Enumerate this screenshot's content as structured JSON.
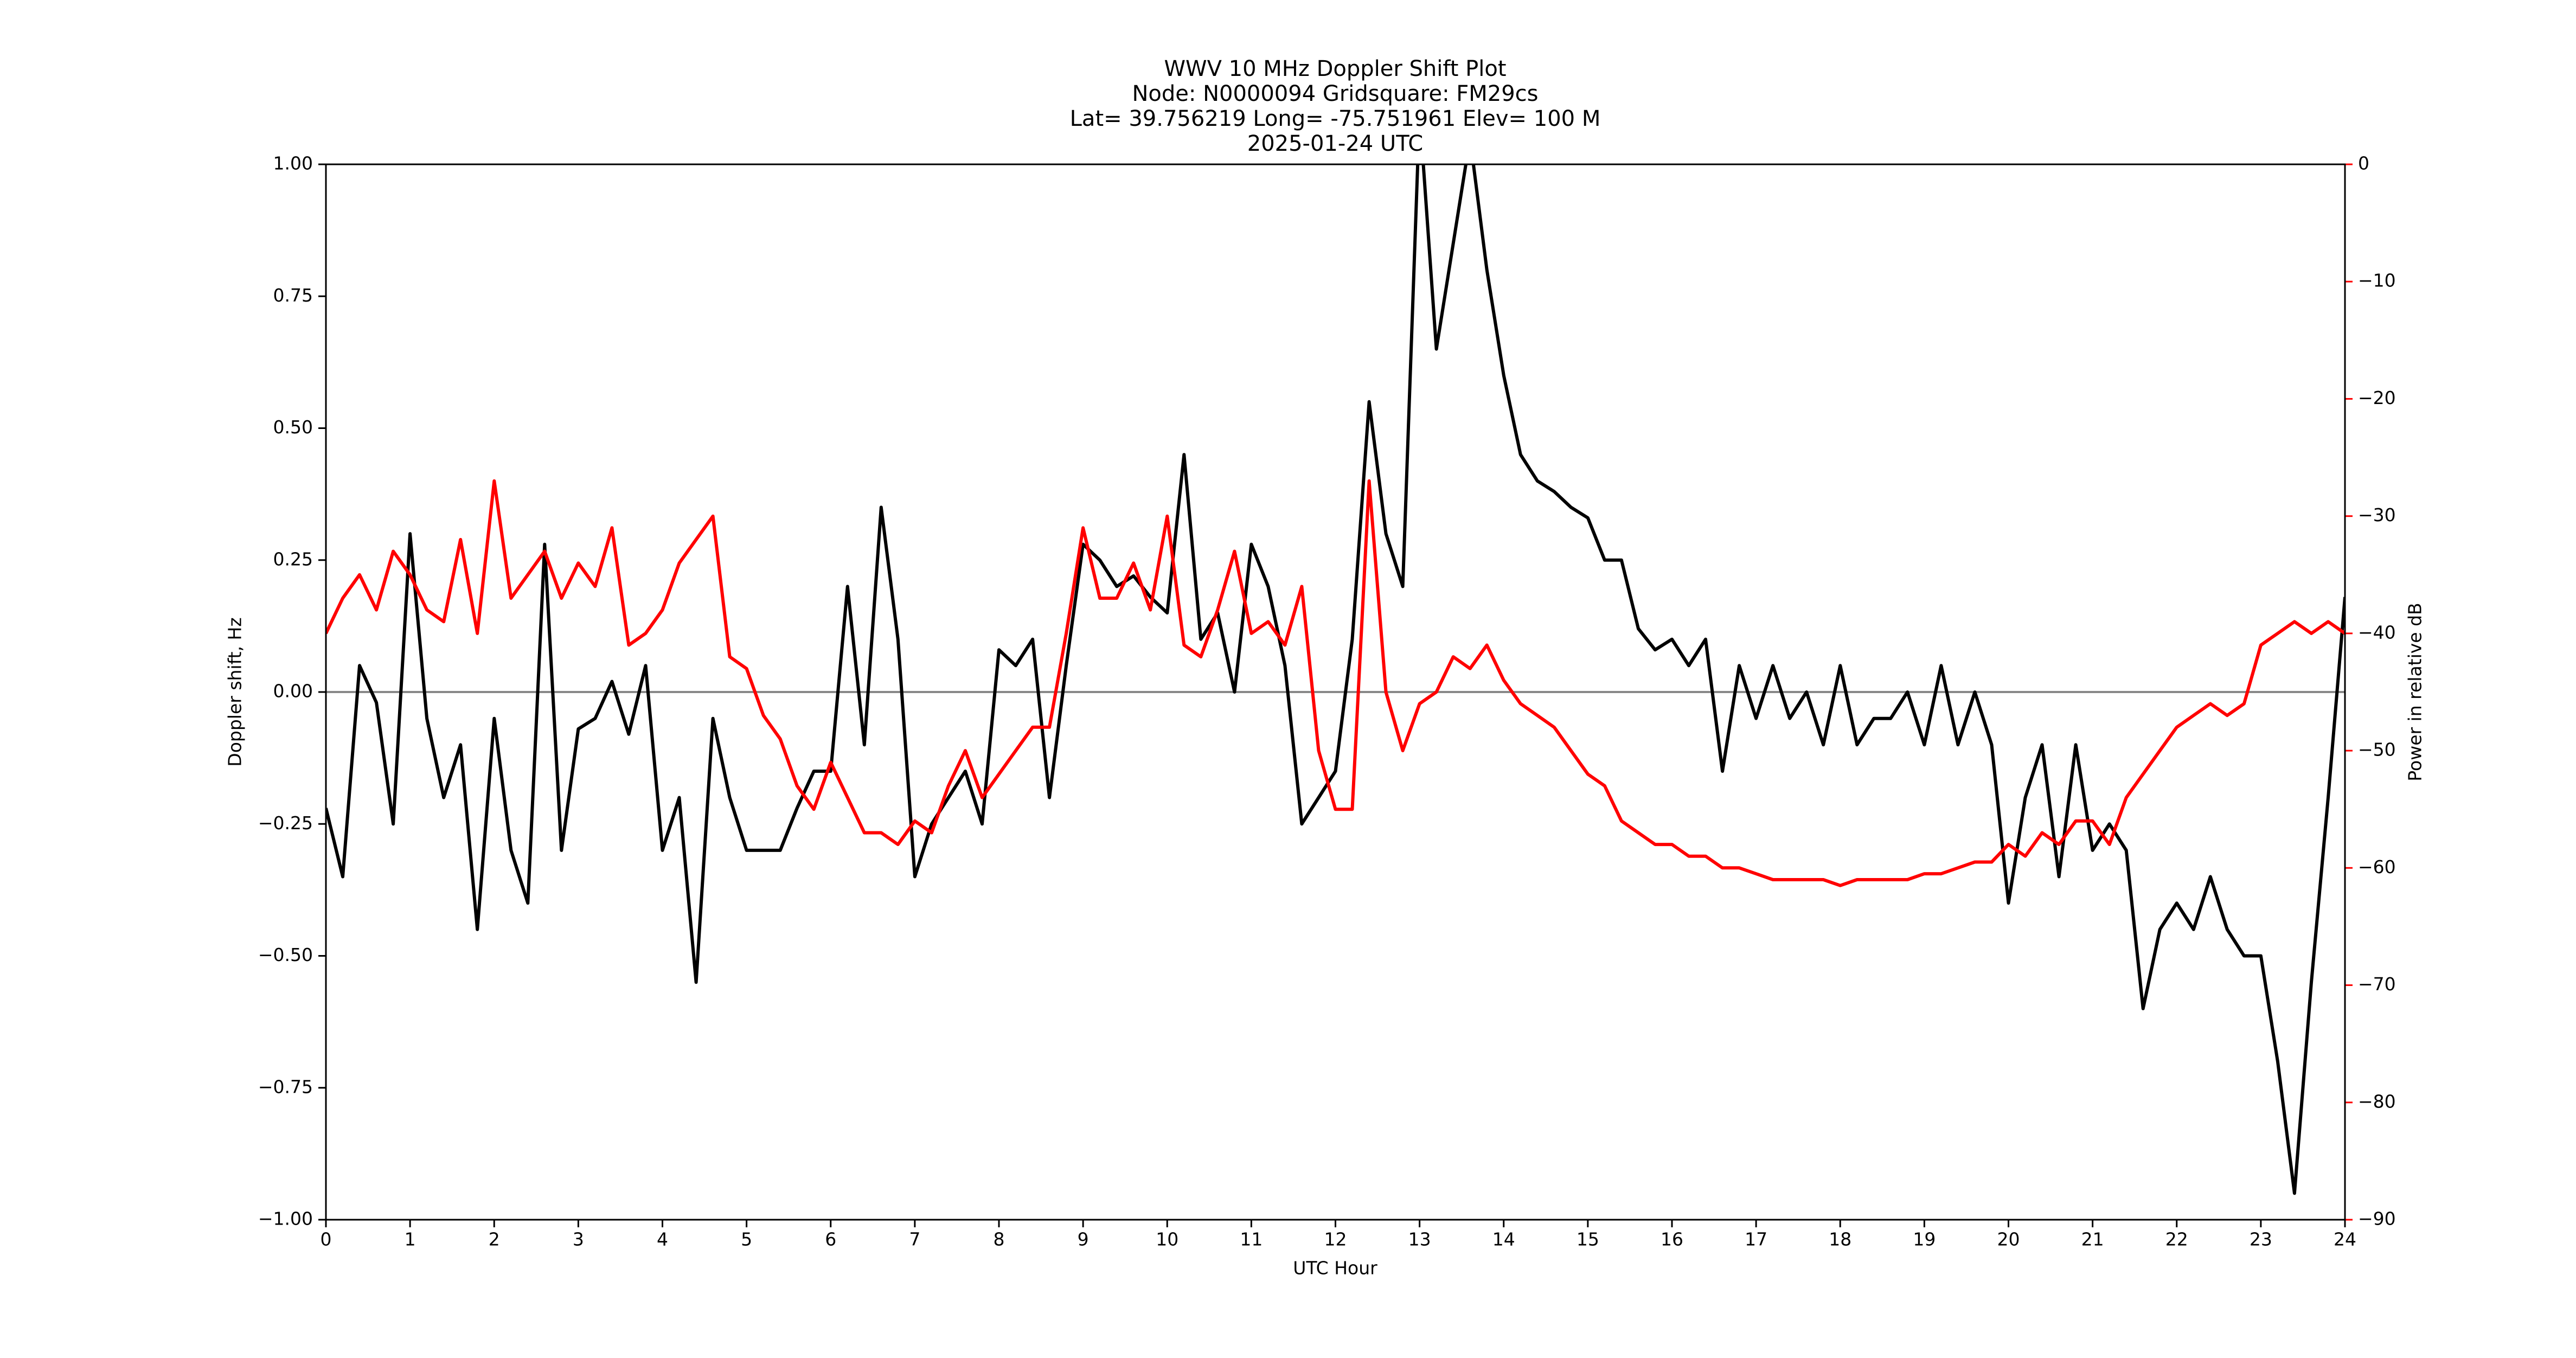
{
  "chart_data": {
    "type": "line",
    "title_lines": [
      "WWV 10 MHz Doppler Shift Plot",
      "Node:  N0000094     Gridsquare:  FM29cs",
      "Lat= 39.756219    Long= -75.751961    Elev= 100 M",
      "2025-01-24  UTC"
    ],
    "x_label": "UTC Hour",
    "y_label": "Doppler shift, Hz",
    "y2_label": "Power in relative dB",
    "xlim": [
      0,
      24
    ],
    "xticks": [
      0,
      1,
      2,
      3,
      4,
      5,
      6,
      7,
      8,
      9,
      10,
      11,
      12,
      13,
      14,
      15,
      16,
      17,
      18,
      19,
      20,
      21,
      22,
      23,
      24
    ],
    "ylim": [
      -1,
      1
    ],
    "yticks": [
      {
        "value": -1,
        "label": "−1.00"
      },
      {
        "value": -0.75,
        "label": "−0.75"
      },
      {
        "value": -0.5,
        "label": "−0.50"
      },
      {
        "value": -0.25,
        "label": "−0.25"
      },
      {
        "value": 0,
        "label": "0.00"
      },
      {
        "value": 0.25,
        "label": "0.25"
      },
      {
        "value": 0.5,
        "label": "0.50"
      },
      {
        "value": 0.75,
        "label": "0.75"
      },
      {
        "value": 1,
        "label": "1.00"
      }
    ],
    "y2lim": [
      -90,
      0
    ],
    "y2ticks": [
      {
        "value": -90,
        "label": "−90"
      },
      {
        "value": -80,
        "label": "−80"
      },
      {
        "value": -70,
        "label": "−70"
      },
      {
        "value": -60,
        "label": "−60"
      },
      {
        "value": -50,
        "label": "−50"
      },
      {
        "value": -40,
        "label": "−40"
      },
      {
        "value": -30,
        "label": "−30"
      },
      {
        "value": -20,
        "label": "−20"
      },
      {
        "value": -10,
        "label": "−10"
      },
      0
    ],
    "y2_color": "#ff0000",
    "hline": 0,
    "hline_color": "#888888",
    "x": [
      0,
      0.2,
      0.4,
      0.6,
      0.8,
      1,
      1.2,
      1.4,
      1.6,
      1.8,
      2,
      2.2,
      2.4,
      2.6,
      2.8,
      3,
      3.2,
      3.4,
      3.6,
      3.8,
      4,
      4.2,
      4.4,
      4.6,
      4.8,
      5,
      5.2,
      5.4,
      5.6,
      5.8,
      6,
      6.2,
      6.4,
      6.6,
      6.8,
      7,
      7.2,
      7.4,
      7.6,
      7.8,
      8,
      8.2,
      8.4,
      8.6,
      8.8,
      9,
      9.2,
      9.4,
      9.6,
      9.8,
      10,
      10.2,
      10.4,
      10.6,
      10.8,
      11,
      11.2,
      11.4,
      11.6,
      11.8,
      12,
      12.2,
      12.4,
      12.6,
      12.8,
      13,
      13.2,
      13.4,
      13.6,
      13.8,
      14,
      14.2,
      14.4,
      14.6,
      14.8,
      15,
      15.2,
      15.4,
      15.6,
      15.8,
      16,
      16.2,
      16.4,
      16.6,
      16.8,
      17,
      17.2,
      17.4,
      17.6,
      17.8,
      18,
      18.2,
      18.4,
      18.6,
      18.8,
      19,
      19.2,
      19.4,
      19.6,
      19.8,
      20,
      20.2,
      20.4,
      20.6,
      20.8,
      21,
      21.2,
      21.4,
      21.6,
      21.8,
      22,
      22.2,
      22.4,
      22.6,
      22.8,
      23,
      23.2,
      23.4,
      23.6,
      23.8,
      24
    ],
    "series": [
      {
        "color": "#000000",
        "axis": "y",
        "values": [
          -0.22,
          -0.35,
          0.05,
          -0.02,
          -0.25,
          0.3,
          -0.05,
          -0.2,
          -0.1,
          -0.45,
          -0.05,
          -0.3,
          -0.4,
          0.28,
          -0.3,
          -0.07,
          -0.05,
          0.02,
          -0.08,
          0.05,
          -0.3,
          -0.2,
          -0.55,
          -0.05,
          -0.2,
          -0.3,
          -0.3,
          -0.3,
          -0.22,
          -0.15,
          -0.15,
          0.2,
          -0.1,
          0.35,
          0.1,
          -0.35,
          -0.25,
          -0.2,
          -0.15,
          -0.25,
          0.08,
          0.05,
          0.1,
          -0.2,
          0.05,
          0.28,
          0.25,
          0.2,
          0.22,
          0.18,
          0.15,
          0.45,
          0.1,
          0.15,
          0.0,
          0.28,
          0.2,
          0.05,
          -0.25,
          -0.2,
          -0.15,
          0.1,
          0.55,
          0.3,
          0.2,
          1.1,
          0.65,
          0.85,
          1.05,
          0.8,
          0.6,
          0.45,
          0.4,
          0.38,
          0.35,
          0.33,
          0.25,
          0.25,
          0.12,
          0.08,
          0.1,
          0.05,
          0.1,
          -0.15,
          0.05,
          -0.05,
          0.05,
          -0.05,
          0.0,
          -0.1,
          0.05,
          -0.1,
          -0.05,
          -0.05,
          0.0,
          -0.1,
          0.05,
          -0.1,
          0.0,
          -0.1,
          -0.4,
          -0.2,
          -0.1,
          -0.35,
          -0.1,
          -0.3,
          -0.25,
          -0.3,
          -0.6,
          -0.45,
          -0.4,
          -0.45,
          -0.35,
          -0.45,
          -0.5,
          -0.5,
          -0.7,
          -0.95,
          -0.55,
          -0.2,
          0.18
        ]
      },
      {
        "color": "#ff0000",
        "axis": "y2",
        "values": [
          -40,
          -37,
          -35,
          -38,
          -33,
          -35,
          -38,
          -39,
          -32,
          -40,
          -27,
          -37,
          -35,
          -33,
          -37,
          -34,
          -36,
          -31,
          -41,
          -40,
          -38,
          -34,
          -32,
          -30,
          -42,
          -43,
          -47,
          -49,
          -53,
          -55,
          -51,
          -54,
          -57,
          -57,
          -58,
          -56,
          -57,
          -53,
          -50,
          -54,
          -52,
          -50,
          -48,
          -48,
          -40,
          -31,
          -37,
          -37,
          -34,
          -38,
          -30,
          -41,
          -42,
          -38,
          -33,
          -40,
          -39,
          -41,
          -36,
          -50,
          -55,
          -55,
          -27,
          -45,
          -50,
          -46,
          -45,
          -42,
          -43,
          -41,
          -44,
          -46,
          -47,
          -48,
          -50,
          -52,
          -53,
          -56,
          -57,
          -58,
          -58,
          -59,
          -59,
          -60,
          -60,
          -60.5,
          -61,
          -61,
          -61,
          -61,
          -61.5,
          -61,
          -61,
          -61,
          -61,
          -60.5,
          -60.5,
          -60,
          -59.5,
          -59.5,
          -58,
          -59,
          -57,
          -58,
          -56,
          -56,
          -58,
          -54,
          -52,
          -50,
          -48,
          -47,
          -46,
          -47,
          -46,
          -41,
          -40,
          -39,
          -40,
          -39,
          -40
        ]
      }
    ]
  }
}
